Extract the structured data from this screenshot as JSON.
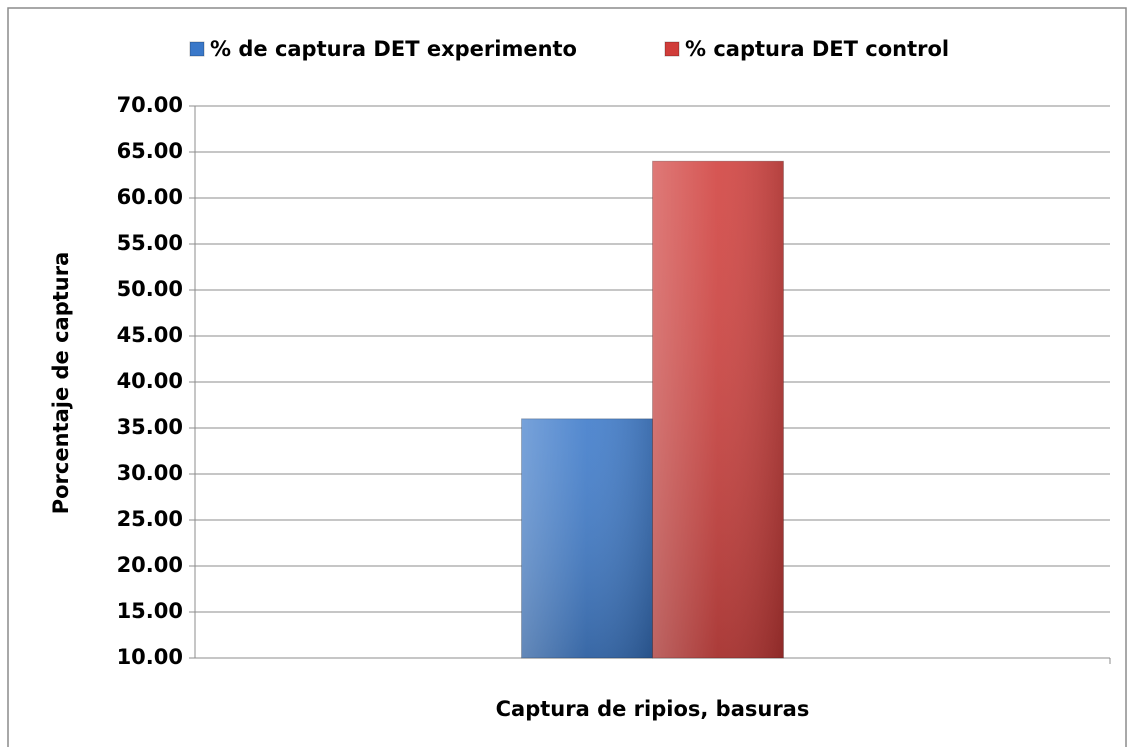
{
  "chart_data": {
    "type": "bar",
    "categories": [
      "Captura de ripios, basuras"
    ],
    "series": [
      {
        "name": "% de captura DET experimento",
        "color": "#3a78c9",
        "values": [
          36.0
        ]
      },
      {
        "name": "% captura DET control",
        "color": "#d03d3a",
        "values": [
          64.0
        ]
      }
    ],
    "ylabel": "Porcentaje de captura",
    "ylim": [
      10,
      70
    ],
    "yticks": [
      {
        "value": 10,
        "label": "10.00"
      },
      {
        "value": 15,
        "label": "15.00"
      },
      {
        "value": 20,
        "label": "20.00"
      },
      {
        "value": 25,
        "label": "25.00"
      },
      {
        "value": 30,
        "label": "30.00"
      },
      {
        "value": 35,
        "label": "35.00"
      },
      {
        "value": 40,
        "label": "40.00"
      },
      {
        "value": 45,
        "label": "45.00"
      },
      {
        "value": 50,
        "label": "50.00"
      },
      {
        "value": 55,
        "label": "55.00"
      },
      {
        "value": 60,
        "label": "60.00"
      },
      {
        "value": 65,
        "label": "65.00"
      },
      {
        "value": 70,
        "label": "70.00"
      }
    ],
    "grid": true,
    "legend": "top"
  }
}
